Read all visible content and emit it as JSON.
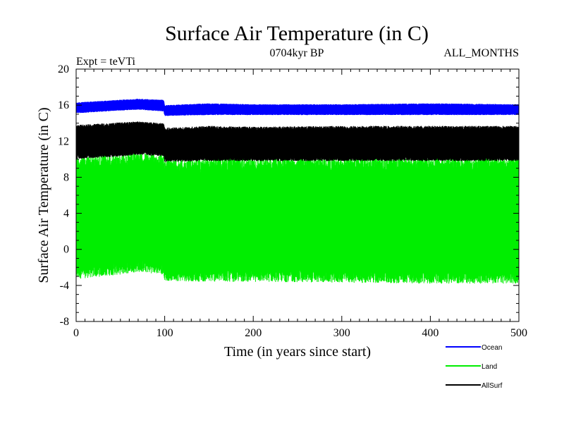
{
  "chart_data": {
    "type": "line",
    "title": "Surface Air Temperature (in C)",
    "subtitle_left": "Expt = teVTi",
    "subtitle_center": "0704kyr BP",
    "subtitle_right": "ALL_MONTHS",
    "xlabel": "Time (in years since start)",
    "ylabel": "Surface Air Temperature (in C)",
    "xlim": [
      0,
      500
    ],
    "ylim": [
      -8,
      20
    ],
    "x_ticks": [
      0,
      100,
      200,
      300,
      400,
      500
    ],
    "y_ticks": [
      -8,
      -4,
      0,
      4,
      8,
      12,
      16,
      20
    ],
    "grid": false,
    "legend_position": "bottom-right",
    "series": [
      {
        "name": "Ocean",
        "color": "#0000ff",
        "x": [
          0,
          50,
          70,
          99,
          100,
          150,
          200,
          300,
          400,
          500
        ],
        "min": [
          15.1,
          15.4,
          15.5,
          15.3,
          14.8,
          14.9,
          14.9,
          14.9,
          14.9,
          14.9
        ],
        "max": [
          16.3,
          16.6,
          16.7,
          16.6,
          16.0,
          16.2,
          16.1,
          16.1,
          16.2,
          16.1
        ]
      },
      {
        "name": "Land",
        "color": "#00ee00",
        "x": [
          0,
          50,
          70,
          99,
          100,
          150,
          200,
          300,
          400,
          500
        ],
        "min": [
          -3.3,
          -2.8,
          -2.5,
          -2.8,
          -3.5,
          -3.6,
          -3.6,
          -3.7,
          -3.8,
          -3.8
        ],
        "max": [
          10.3,
          10.6,
          10.8,
          10.5,
          10.0,
          10.1,
          10.2,
          10.2,
          10.2,
          10.2
        ]
      },
      {
        "name": "AllSurf",
        "color": "#000000",
        "x": [
          0,
          50,
          70,
          99,
          100,
          150,
          200,
          300,
          400,
          500
        ],
        "min": [
          10.0,
          10.3,
          10.5,
          10.3,
          9.7,
          9.8,
          9.8,
          9.8,
          9.8,
          9.8
        ],
        "max": [
          13.8,
          14.1,
          14.2,
          14.0,
          13.5,
          13.7,
          13.6,
          13.7,
          13.7,
          13.7
        ]
      }
    ]
  }
}
